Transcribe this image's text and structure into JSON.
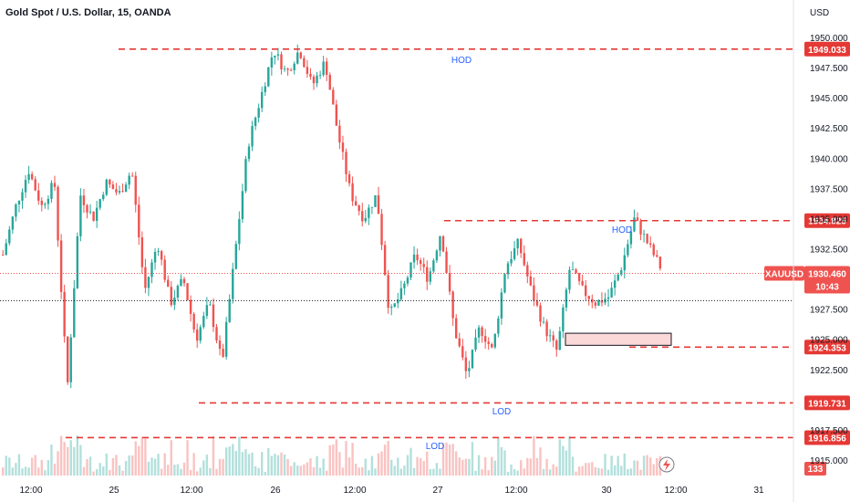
{
  "symbol_title": "Gold Spot / U.S. Dollar, 15, OANDA",
  "currency_label": "USD",
  "chart_data": {
    "type": "candlestick",
    "title": "Gold Spot / U.S. Dollar, 15, OANDA",
    "ylim": [
      1915.0,
      1950.0
    ],
    "y_ticks": [
      "1950.000",
      "1947.500",
      "1945.000",
      "1942.500",
      "1940.000",
      "1937.500",
      "1935.000",
      "1932.500",
      "1927.500",
      "1925.000",
      "1922.500",
      "1917.500",
      "1915.000"
    ],
    "x_ticks": [
      "12:00",
      "25",
      "12:00",
      "26",
      "12:00",
      "27",
      "12:00",
      "30",
      "12:00",
      "31"
    ],
    "price_path": [
      1932,
      1936,
      1939,
      1936,
      1938,
      1921,
      1937,
      1935,
      1938,
      1937,
      1939,
      1929,
      1933,
      1928,
      1930,
      1925,
      1928,
      1923,
      1932,
      1941,
      1945,
      1949,
      1947,
      1949,
      1946,
      1948,
      1942,
      1937,
      1935,
      1937,
      1927,
      1929,
      1932,
      1930,
      1934,
      1926,
      1922,
      1926,
      1924,
      1931,
      1933,
      1929,
      1926,
      1924,
      1931,
      1929,
      1928,
      1928.5,
      1931,
      1935,
      1933,
      1931
    ],
    "levels": [
      {
        "label": "HOD",
        "price": "1949.033"
      },
      {
        "label": "HOD",
        "price": "1934.825"
      },
      {
        "label": "",
        "price": "1924.353"
      },
      {
        "label": "LOD",
        "price": "1919.731"
      },
      {
        "label": "LOD",
        "price": "1916.856"
      }
    ],
    "zone": {
      "from": 1925.5,
      "to": 1924.5
    },
    "last_price": {
      "symbol": "XAUUSD",
      "price": "1930.460",
      "countdown": "10:43"
    },
    "volume_value": "133",
    "grid": false,
    "colors": {
      "up": "#26a69a",
      "down": "#ef5350",
      "level": "#e53935",
      "annotation": "#2962ff"
    }
  }
}
